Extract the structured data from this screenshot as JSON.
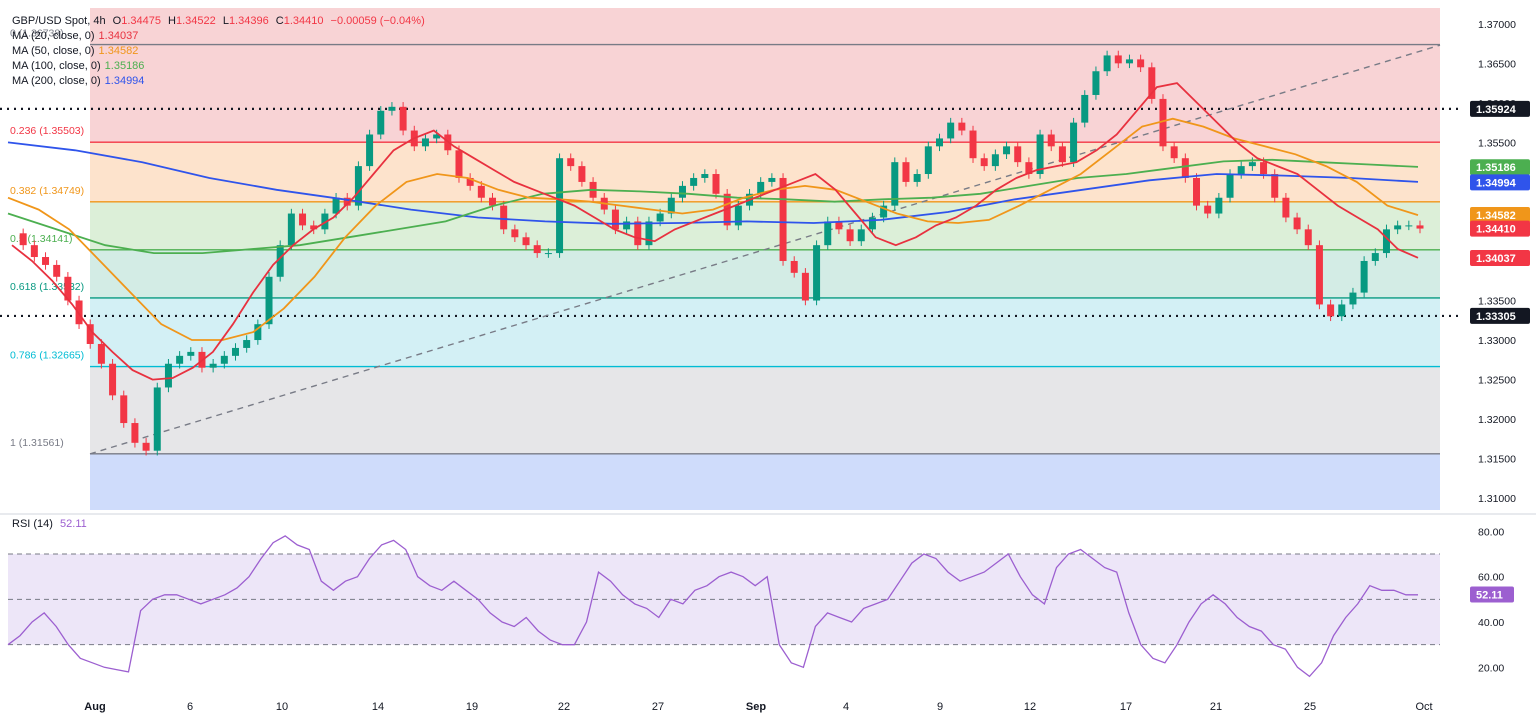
{
  "header": {
    "symbol": "GBP/USD Spot",
    "timeframe": "4h",
    "ohlc": {
      "O": "1.34475",
      "H": "1.34522",
      "L": "1.34396",
      "C": "1.34410",
      "chg": "−0.00059 (−0.04%)"
    }
  },
  "moving_averages": [
    {
      "label": "MA (20, close, 0)",
      "value": "1.34037",
      "color": "#e8313f"
    },
    {
      "label": "MA (50, close, 0)",
      "value": "1.34582",
      "color": "#f0961a"
    },
    {
      "label": "MA (100, close, 0)",
      "value": "1.35186",
      "color": "#4caf50"
    },
    {
      "label": "MA (200, close, 0)",
      "value": "1.34994",
      "color": "#2f54eb"
    }
  ],
  "rsi": {
    "label": "RSI (14)",
    "value": "52.11",
    "color": "#9c5fd0"
  },
  "colors": {
    "up": "#089981",
    "down": "#f23645",
    "ma20": "#e8313f",
    "ma50": "#f0961a",
    "ma100": "#4caf50",
    "ma200": "#2f54eb"
  },
  "chart_data": {
    "type": "candlestick",
    "title": "GBP/USD Spot, 4h",
    "ylim": [
      1.3085,
      1.372
    ],
    "y_ticks": [
      "1.37000",
      "1.36500",
      "1.36000",
      "1.35500",
      "1.35000",
      "1.34500",
      "1.34000",
      "1.33500",
      "1.33000",
      "1.32500",
      "1.32000",
      "1.31500",
      "1.31000"
    ],
    "x_ticks": [
      "Aug",
      "6",
      "10",
      "14",
      "19",
      "22",
      "27",
      "Sep",
      "4",
      "9",
      "12",
      "17",
      "21",
      "25",
      "Oct"
    ],
    "fib_levels": [
      {
        "label": "0 (1.36738)",
        "value": 1.36738,
        "color": "#787b86"
      },
      {
        "label": "0.236 (1.35503)",
        "value": 1.35503,
        "color": "#f23645"
      },
      {
        "label": "0.382 (1.34749)",
        "value": 1.34749,
        "color": "#f0961a"
      },
      {
        "label": "0.5 (1.34141)",
        "value": 1.34141,
        "color": "#4caf50"
      },
      {
        "label": "0.618 (1.33532)",
        "value": 1.33532,
        "color": "#089981"
      },
      {
        "label": "0.786 (1.32665)",
        "value": 1.32665,
        "color": "#00bcd4"
      },
      {
        "label": "1 (1.31561)",
        "value": 1.31561,
        "color": "#787b86"
      }
    ],
    "horizontal_lines": [
      {
        "value": 1.35924,
        "label": "1.35924",
        "style": "dotted"
      },
      {
        "value": 1.33305,
        "label": "1.33305",
        "style": "dotted"
      }
    ],
    "price_labels": [
      {
        "value": 1.35924,
        "label": "1.35924",
        "color": "#131722"
      },
      {
        "value": 1.35186,
        "label": "1.35186",
        "color": "#4caf50"
      },
      {
        "value": 1.34994,
        "label": "1.34994",
        "color": "#2f54eb"
      },
      {
        "value": 1.34582,
        "label": "1.34582",
        "color": "#f0961a"
      },
      {
        "value": 1.3441,
        "label": "1.34410",
        "color": "#f23645"
      },
      {
        "value": 1.34037,
        "label": "1.34037",
        "color": "#f23645"
      },
      {
        "value": 1.33305,
        "label": "1.33305",
        "color": "#131722"
      }
    ],
    "close_path": [
      1.3435,
      1.342,
      1.3405,
      1.3395,
      1.338,
      1.335,
      1.332,
      1.3295,
      1.327,
      1.323,
      1.3195,
      1.317,
      1.316,
      1.324,
      1.327,
      1.328,
      1.3285,
      1.3265,
      1.327,
      1.328,
      1.329,
      1.33,
      1.332,
      1.338,
      1.342,
      1.346,
      1.3445,
      1.344,
      1.346,
      1.348,
      1.347,
      1.352,
      1.356,
      1.359,
      1.3595,
      1.3565,
      1.3545,
      1.3555,
      1.356,
      1.354,
      1.3505,
      1.3495,
      1.348,
      1.347,
      1.344,
      1.343,
      1.342,
      1.341,
      1.341,
      1.353,
      1.352,
      1.35,
      1.348,
      1.3465,
      1.344,
      1.345,
      1.342,
      1.345,
      1.346,
      1.348,
      1.3495,
      1.3505,
      1.351,
      1.3485,
      1.3445,
      1.347,
      1.3485,
      1.35,
      1.3505,
      1.34,
      1.3385,
      1.335,
      1.342,
      1.345,
      1.344,
      1.3425,
      1.344,
      1.3455,
      1.347,
      1.3525,
      1.35,
      1.351,
      1.3545,
      1.3555,
      1.3575,
      1.3565,
      1.353,
      1.352,
      1.3535,
      1.3545,
      1.3525,
      1.351,
      1.356,
      1.3545,
      1.3525,
      1.3575,
      1.361,
      1.364,
      1.366,
      1.365,
      1.3655,
      1.3645,
      1.3605,
      1.3545,
      1.353,
      1.3505,
      1.347,
      1.346,
      1.348,
      1.351,
      1.352,
      1.3525,
      1.351,
      1.348,
      1.3455,
      1.344,
      1.342,
      1.3345,
      1.333,
      1.3345,
      1.336,
      1.34,
      1.341,
      1.344,
      1.3445,
      1.3445,
      1.3441
    ],
    "ma20": [
      1.342,
      1.34,
      1.3375,
      1.3345,
      1.331,
      1.3285,
      1.3262,
      1.325,
      1.3252,
      1.3265,
      1.3285,
      1.332,
      1.336,
      1.3395,
      1.342,
      1.344,
      1.3455,
      1.348,
      1.351,
      1.354,
      1.3555,
      1.3565,
      1.3545,
      1.353,
      1.3515,
      1.35,
      1.349,
      1.348,
      1.347,
      1.3455,
      1.344,
      1.343,
      1.3425,
      1.344,
      1.345,
      1.346,
      1.347,
      1.348,
      1.349,
      1.35,
      1.351,
      1.349,
      1.346,
      1.343,
      1.342,
      1.343,
      1.3445,
      1.3455,
      1.347,
      1.349,
      1.3505,
      1.3515,
      1.352,
      1.3525,
      1.354,
      1.356,
      1.359,
      1.362,
      1.3625,
      1.36,
      1.3575,
      1.355,
      1.353,
      1.352,
      1.351,
      1.349,
      1.347,
      1.3455,
      1.344,
      1.3415,
      1.3404
    ],
    "ma50": [
      1.348,
      1.3465,
      1.344,
      1.34,
      1.336,
      1.332,
      1.33,
      1.33,
      1.331,
      1.334,
      1.338,
      1.343,
      1.347,
      1.35,
      1.351,
      1.3505,
      1.349,
      1.348,
      1.3478,
      1.3475,
      1.347,
      1.3465,
      1.346,
      1.3465,
      1.348,
      1.349,
      1.3495,
      1.349,
      1.3475,
      1.346,
      1.345,
      1.3448,
      1.3452,
      1.347,
      1.349,
      1.351,
      1.354,
      1.357,
      1.358,
      1.357,
      1.3555,
      1.3545,
      1.3535,
      1.352,
      1.35,
      1.347,
      1.3458
    ],
    "ma100": [
      1.346,
      1.344,
      1.342,
      1.341,
      1.341,
      1.3415,
      1.342,
      1.343,
      1.344,
      1.345,
      1.347,
      1.3485,
      1.349,
      1.3488,
      1.3485,
      1.348,
      1.3478,
      1.3475,
      1.3478,
      1.348,
      1.3485,
      1.3495,
      1.3505,
      1.351,
      1.3518,
      1.3526,
      1.3528,
      1.3525,
      1.3522,
      1.3519
    ],
    "ma200": [
      1.355,
      1.354,
      1.3525,
      1.3505,
      1.349,
      1.3478,
      1.3465,
      1.3455,
      1.345,
      1.3447,
      1.3448,
      1.345,
      1.3448,
      1.3452,
      1.3462,
      1.3478,
      1.349,
      1.3502,
      1.351,
      1.3508,
      1.3505,
      1.35
    ],
    "rsi": {
      "ylim": [
        10,
        85
      ],
      "y_ticks": [
        "80.00",
        "60.00",
        "40.00",
        "20.00"
      ],
      "upper": 70,
      "mid": 50,
      "lower": 30,
      "values": [
        30,
        34,
        40,
        44,
        38,
        30,
        24,
        22,
        20,
        19,
        18,
        45,
        50,
        52,
        52,
        50,
        48,
        50,
        52,
        55,
        60,
        68,
        75,
        78,
        74,
        72,
        58,
        54,
        58,
        60,
        68,
        74,
        76,
        72,
        60,
        56,
        54,
        58,
        54,
        50,
        44,
        40,
        38,
        42,
        36,
        32,
        30,
        30,
        40,
        62,
        58,
        52,
        48,
        46,
        42,
        50,
        48,
        54,
        56,
        60,
        62,
        60,
        56,
        60,
        30,
        22,
        20,
        38,
        44,
        42,
        40,
        46,
        48,
        50,
        58,
        66,
        70,
        68,
        62,
        58,
        60,
        62,
        66,
        70,
        60,
        52,
        48,
        64,
        70,
        72,
        68,
        64,
        62,
        44,
        30,
        24,
        22,
        30,
        40,
        48,
        52,
        48,
        42,
        38,
        36,
        30,
        28,
        20,
        16,
        22,
        34,
        42,
        48,
        56,
        54,
        54,
        52,
        52
      ],
      "current": 52.11
    }
  }
}
